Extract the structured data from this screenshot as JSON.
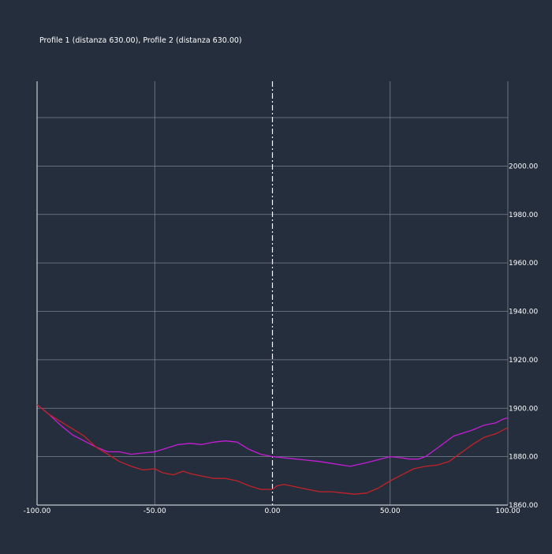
{
  "chart_data": {
    "type": "line",
    "title": "Profile 1 (distanza 630.00), Profile 2 (distanza 630.00)",
    "xlim": [
      -100,
      100
    ],
    "ylim": [
      1860,
      2035
    ],
    "x_ticks": [
      -100,
      -50,
      0,
      50,
      100
    ],
    "x_tick_labels": [
      "-100.00",
      "-50.00",
      "0.00",
      "50.00",
      "100.00"
    ],
    "y_ticks": [
      1860,
      1880,
      1900,
      1920,
      1940,
      1960,
      1980,
      2000
    ],
    "y_tick_labels": [
      "1860.00",
      "1880.00",
      "1900.00",
      "1920.00",
      "1940.00",
      "1960.00",
      "1980.00",
      "2000.00"
    ],
    "grid": true,
    "center_marker_x": 0,
    "series": [
      {
        "color": "#c51dd6",
        "x": [
          -100,
          -95,
          -90,
          -85,
          -80,
          -75,
          -70,
          -65,
          -60,
          -55,
          -50,
          -45,
          -40,
          -35,
          -30,
          -25,
          -20,
          -15,
          -10,
          -5,
          0,
          10,
          20,
          33,
          40,
          50,
          55,
          58,
          62,
          65,
          70,
          77,
          85,
          90,
          95,
          98,
          100
        ],
        "y": [
          1901.5,
          1897.5,
          1893,
          1889,
          1886.5,
          1884,
          1882,
          1882,
          1881,
          1881.5,
          1882,
          1883.5,
          1885,
          1885.5,
          1885,
          1886,
          1886.5,
          1886,
          1883,
          1881,
          1880,
          1879,
          1878,
          1876,
          1877.5,
          1880,
          1879.5,
          1879,
          1879,
          1880,
          1883.5,
          1888.5,
          1891,
          1893,
          1894,
          1895.5,
          1896
        ]
      },
      {
        "color": "#c3222a",
        "x": [
          -100,
          -95,
          -90,
          -85,
          -80,
          -75,
          -70,
          -65,
          -60,
          -55,
          -50,
          -47,
          -45,
          -42,
          -38,
          -35,
          -30,
          -25,
          -20,
          -15,
          -10,
          -5,
          0,
          2,
          5,
          10,
          15,
          20,
          25,
          30,
          35,
          40,
          45,
          50,
          55,
          60,
          65,
          70,
          75,
          80,
          85,
          90,
          95,
          100
        ],
        "y": [
          1901.5,
          1897.5,
          1894.5,
          1891.5,
          1888.5,
          1884,
          1881,
          1878,
          1876,
          1874.5,
          1875,
          1873.5,
          1873,
          1872.5,
          1874,
          1873,
          1872,
          1871,
          1871,
          1870,
          1868,
          1866.5,
          1866.5,
          1868,
          1868.5,
          1867.5,
          1866.5,
          1865.5,
          1865.5,
          1865,
          1864.5,
          1865,
          1867,
          1870,
          1872.5,
          1875,
          1876,
          1876.5,
          1878,
          1881.5,
          1885,
          1888,
          1889.5,
          1892
        ]
      }
    ]
  }
}
